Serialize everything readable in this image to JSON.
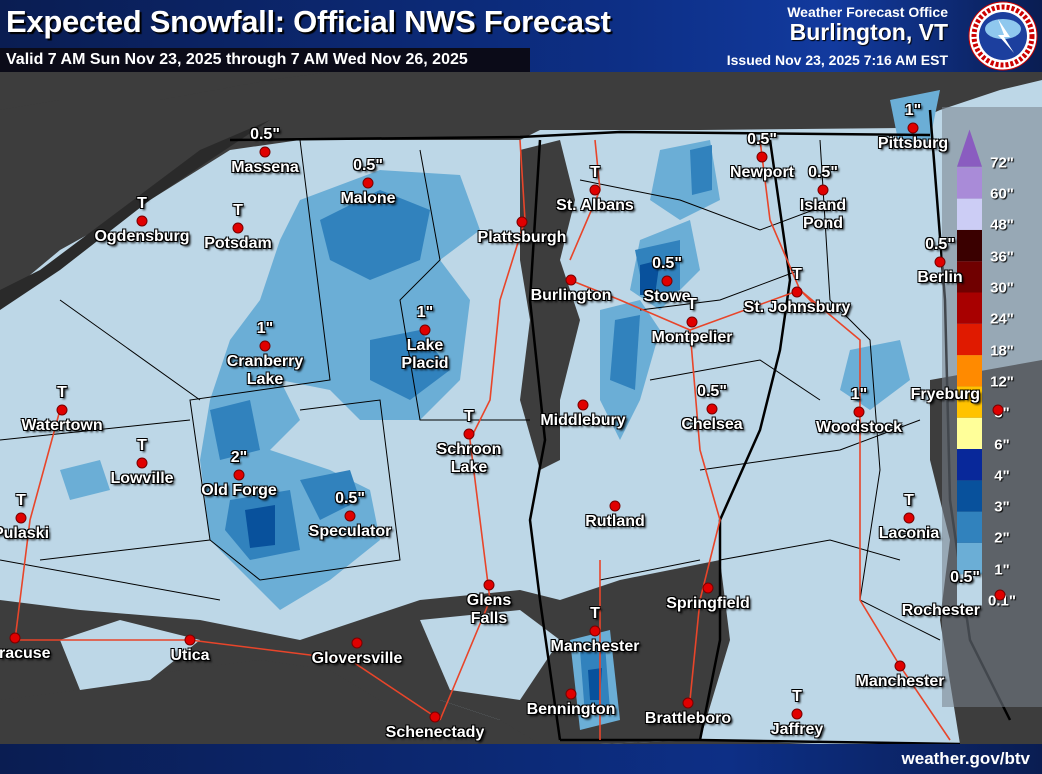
{
  "header": {
    "title": "Expected Snowfall: Official NWS Forecast",
    "valid": "Valid 7 AM Sun Nov 23, 2025 through 7 AM Wed Nov 26, 2025",
    "office_label": "Weather Forecast Office",
    "office": "Burlington, VT",
    "issued": "Issued Nov 23, 2025 7:16 AM EST",
    "logo_text": "NATIONAL WEATHER SERVICE"
  },
  "footer": {
    "url": "weather.gov/btv"
  },
  "colors": {
    "no_snow": "#3d3d3d",
    "trace_to_1": "#bdd7e7",
    "1_to_2": "#6baed6",
    "2_to_3": "#3182bd",
    "3_to_4": "#08519c",
    "4_to_6": "#08306b",
    "roads": "#e8452a",
    "borders": "#000000",
    "city_dot": "#e00000"
  },
  "legend": {
    "labels": [
      "0.1\"",
      "1\"",
      "2\"",
      "3\"",
      "4\"",
      "6\"",
      "8\"",
      "12\"",
      "18\"",
      "24\"",
      "30\"",
      "36\"",
      "48\"",
      "60\"",
      "72\""
    ],
    "colors": [
      "#bdd7e7",
      "#6baed6",
      "#3182bd",
      "#08519c",
      "#08289a",
      "#ffff99",
      "#ffc200",
      "#ff8a00",
      "#e01a00",
      "#a80000",
      "#700000",
      "#3a0000",
      "#cccdf5",
      "#a98bd8",
      "#8a5cc0"
    ]
  },
  "cities": [
    {
      "name": "Massena",
      "value": "0.5\""
    },
    {
      "name": "Malone",
      "value": "0.5\""
    },
    {
      "name": "Ogdensburg",
      "value": "T"
    },
    {
      "name": "Potsdam",
      "value": "T"
    },
    {
      "name": "Plattsburgh",
      "value": ""
    },
    {
      "name": "St. Albans",
      "value": "T"
    },
    {
      "name": "Newport",
      "value": "0.5\""
    },
    {
      "name": "Island Pond",
      "value": "0.5\""
    },
    {
      "name": "Pittsburg",
      "value": "1\""
    },
    {
      "name": "Burlington",
      "value": ""
    },
    {
      "name": "Stowe",
      "value": "0.5\""
    },
    {
      "name": "St. Johnsbury",
      "value": "T"
    },
    {
      "name": "Berlin",
      "value": "0.5\""
    },
    {
      "name": "Cranberry Lake",
      "value": "1\""
    },
    {
      "name": "Lake Placid",
      "value": "1\""
    },
    {
      "name": "Montpelier",
      "value": "T"
    },
    {
      "name": "Watertown",
      "value": "T"
    },
    {
      "name": "Middlebury",
      "value": ""
    },
    {
      "name": "Chelsea",
      "value": "0.5\""
    },
    {
      "name": "Woodstock",
      "value": "1\""
    },
    {
      "name": "Lowville",
      "value": "T"
    },
    {
      "name": "Old Forge",
      "value": "2\""
    },
    {
      "name": "Schroon Lake",
      "value": "T"
    },
    {
      "name": "Pulaski",
      "value": "T"
    },
    {
      "name": "Speculator",
      "value": "0.5\""
    },
    {
      "name": "Rutland",
      "value": ""
    },
    {
      "name": "Laconia",
      "value": "T"
    },
    {
      "name": "Glens Falls",
      "value": ""
    },
    {
      "name": "Springfield",
      "value": ""
    },
    {
      "name": "Manchester",
      "value": "T"
    },
    {
      "name": "Syracuse",
      "value": ""
    },
    {
      "name": "Utica",
      "value": ""
    },
    {
      "name": "Gloversville",
      "value": ""
    },
    {
      "name": "Bennington",
      "value": ""
    },
    {
      "name": "Brattleboro",
      "value": ""
    },
    {
      "name": "Jaffrey",
      "value": "T"
    },
    {
      "name": "Manchester",
      "value": ""
    },
    {
      "name": "Schenectady",
      "value": ""
    },
    {
      "name": "Fryeburg",
      "value": ""
    },
    {
      "name": "Rochester",
      "value": "0.5\""
    }
  ]
}
